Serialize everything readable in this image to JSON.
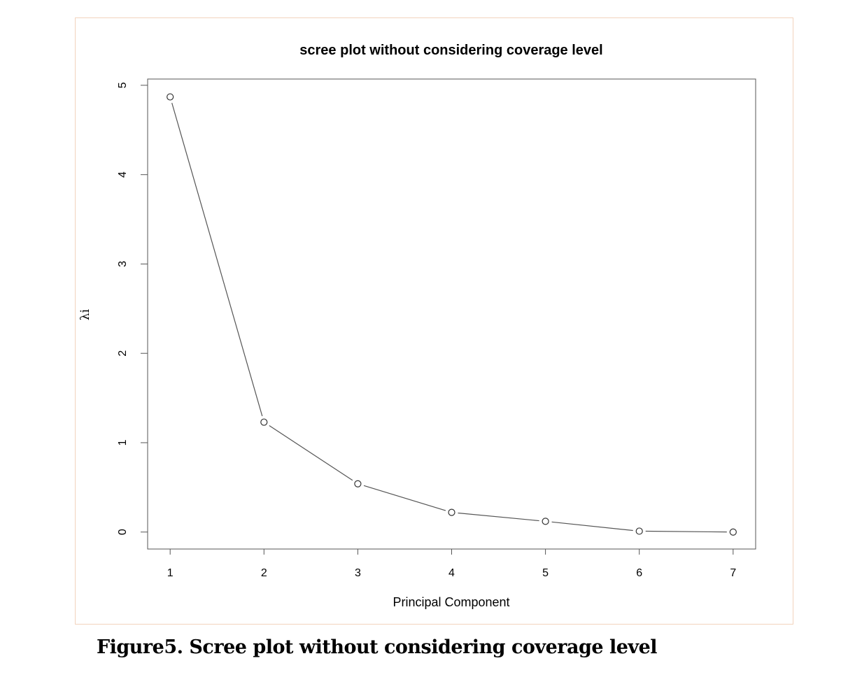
{
  "caption": "Figure5. Scree plot without considering coverage level",
  "chart_data": {
    "type": "line",
    "title": "scree plot without considering coverage level",
    "xlabel": "Principal Component",
    "ylabel": "λi",
    "x": [
      1,
      2,
      3,
      4,
      5,
      6,
      7
    ],
    "values": [
      4.87,
      1.23,
      0.54,
      0.22,
      0.12,
      0.01,
      0.0
    ],
    "xticks": [
      "1",
      "2",
      "3",
      "4",
      "5",
      "6",
      "7"
    ],
    "yticks": [
      "0",
      "1",
      "2",
      "3",
      "4",
      "5"
    ],
    "xlim": [
      0.76,
      7.24
    ],
    "ylim": [
      -0.19,
      5.07
    ],
    "grid": false,
    "marker": "open-circle",
    "line_color": "#555555"
  }
}
